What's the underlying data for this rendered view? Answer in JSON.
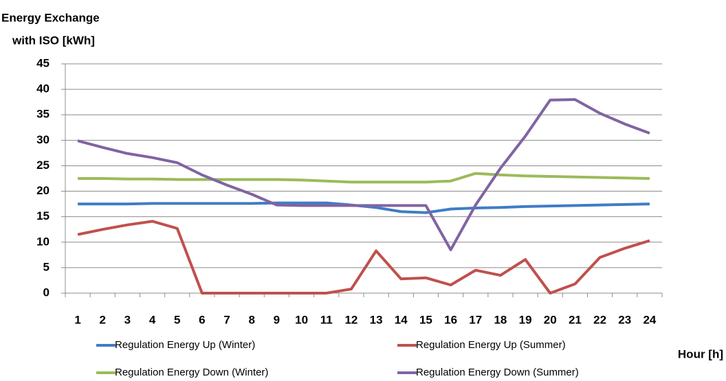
{
  "chart_data": {
    "type": "line",
    "ylabel": [
      "Energy Exchange",
      "with ISO [kWh]"
    ],
    "xlabel": "Hour [h]",
    "categories": [
      "1",
      "2",
      "3",
      "4",
      "5",
      "6",
      "7",
      "8",
      "9",
      "10",
      "11",
      "12",
      "13",
      "14",
      "15",
      "16",
      "17",
      "18",
      "19",
      "20",
      "21",
      "22",
      "23",
      "24"
    ],
    "ylim": [
      0,
      45
    ],
    "yticks": [
      0,
      5,
      10,
      15,
      20,
      25,
      30,
      35,
      40,
      45
    ],
    "grid": true,
    "series": [
      {
        "name": "Regulation Energy Up (Winter)",
        "color": "#3f7cc6",
        "values": [
          17.5,
          17.5,
          17.5,
          17.6,
          17.6,
          17.6,
          17.6,
          17.6,
          17.7,
          17.7,
          17.7,
          17.3,
          16.8,
          16.0,
          15.8,
          16.5,
          16.7,
          16.8,
          17.0,
          17.1,
          17.2,
          17.3,
          17.4,
          17.5
        ]
      },
      {
        "name": "Regulation Energy Up (Summer)",
        "color": "#c0504d",
        "values": [
          11.5,
          12.5,
          13.4,
          14.1,
          12.7,
          0,
          0,
          0,
          0,
          0,
          0,
          0.8,
          8.3,
          2.8,
          3.0,
          1.6,
          4.5,
          3.5,
          6.6,
          0,
          1.8,
          7.0,
          8.8,
          10.3
        ]
      },
      {
        "name": "Regulation Energy Down (Winter)",
        "color": "#9bbb59",
        "values": [
          22.5,
          22.5,
          22.4,
          22.4,
          22.3,
          22.3,
          22.3,
          22.3,
          22.3,
          22.2,
          22.0,
          21.8,
          21.8,
          21.8,
          21.8,
          22.0,
          23.5,
          23.2,
          23.0,
          22.9,
          22.8,
          22.7,
          22.6,
          22.5
        ]
      },
      {
        "name": "Regulation Energy Down (Summer)",
        "color": "#8064a2",
        "values": [
          29.9,
          28.6,
          27.4,
          26.6,
          25.6,
          23.2,
          21.2,
          19.4,
          17.3,
          17.2,
          17.2,
          17.2,
          17.2,
          17.2,
          17.2,
          8.5,
          17.3,
          24.5,
          30.8,
          37.9,
          38.0,
          35.3,
          33.2,
          31.4
        ]
      }
    ]
  }
}
